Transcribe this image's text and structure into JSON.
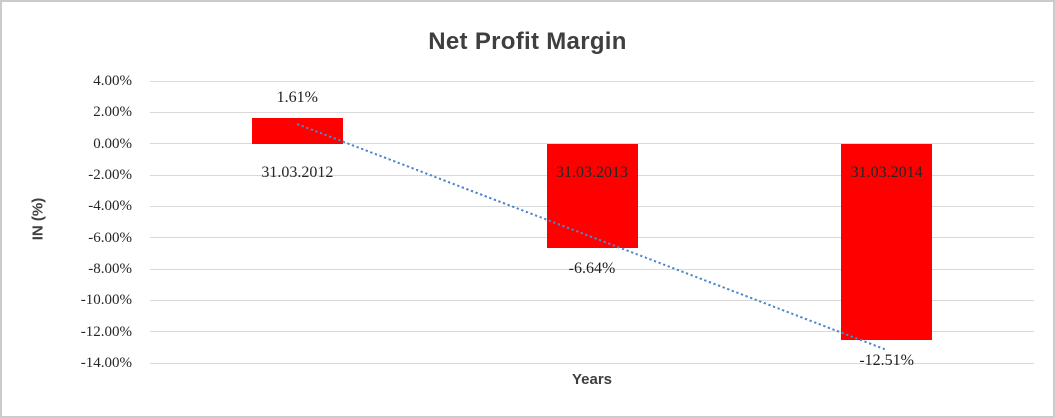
{
  "chart_data": {
    "type": "bar",
    "title": "Net Profit Margin",
    "xlabel": "Years",
    "ylabel": "IN (%)",
    "categories": [
      "31.03.2012",
      "31.03.2013",
      "31.03.2014"
    ],
    "values": [
      1.61,
      -6.64,
      -12.51
    ],
    "value_labels": [
      "1.61%",
      "-6.64%",
      "-12.51%"
    ],
    "ylim": [
      -14,
      4
    ],
    "ytick_step": 2,
    "yticks": [
      4,
      2,
      0,
      -2,
      -4,
      -6,
      -8,
      -10,
      -12,
      -14
    ],
    "ytick_labels": [
      "4.00%",
      "2.00%",
      "0.00%",
      "-2.00%",
      "-4.00%",
      "-6.00%",
      "-8.00%",
      "-10.00%",
      "-12.00%",
      "-14.00%"
    ],
    "grid": true,
    "legend": "none",
    "bar_color": "#ff0000",
    "gridline_color": "#d9d9d9",
    "text_color": "#262626",
    "title_color": "#3f3f3f",
    "trendline": {
      "style": "dotted",
      "color": "#4e87cd",
      "start_value_pct": 1.32,
      "end_value_pct": -13.1
    }
  }
}
